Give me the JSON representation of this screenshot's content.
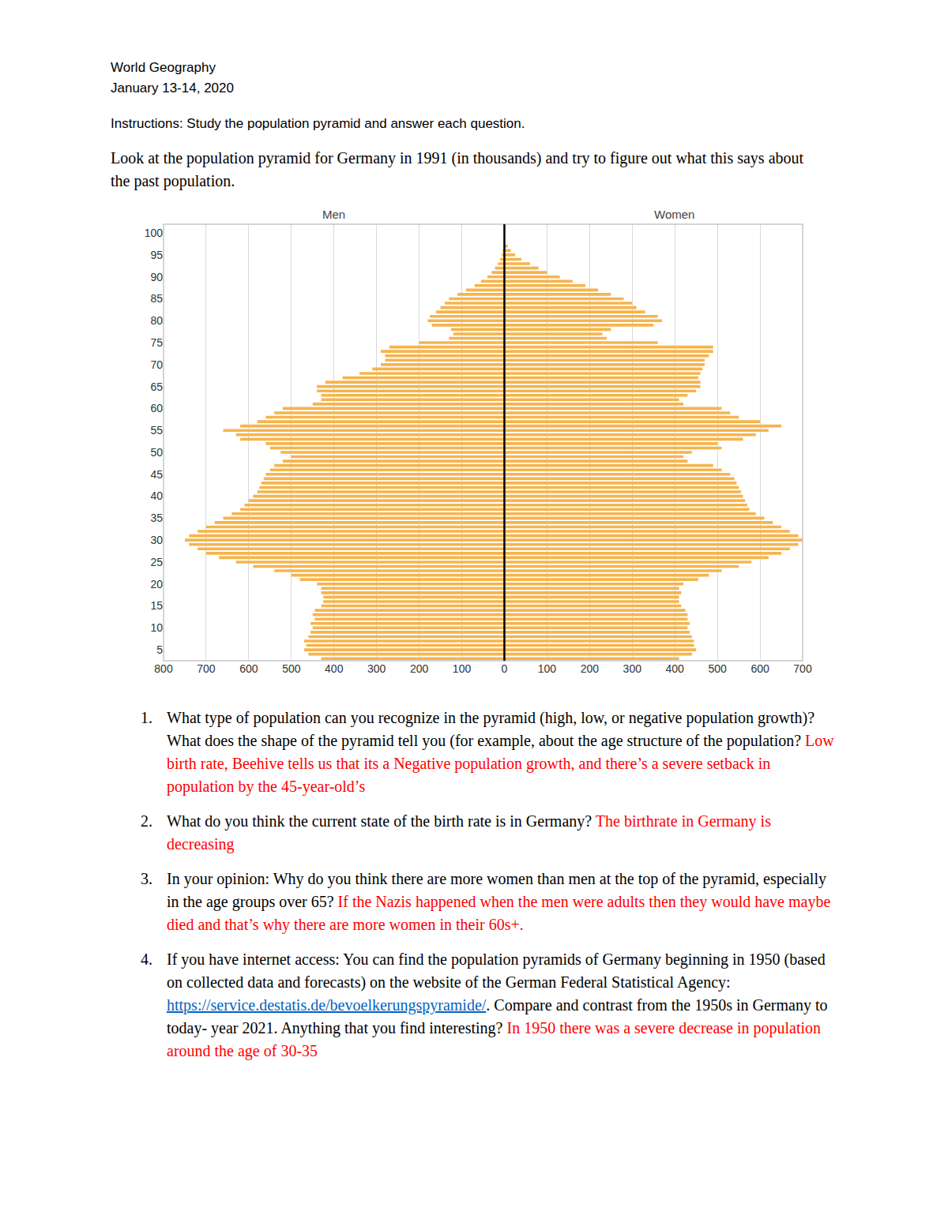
{
  "header": {
    "course": "World Geography",
    "date": "January 13-14, 2020",
    "instructions": "Instructions: Study the population pyramid and answer each question."
  },
  "intro": "Look at the population pyramid for Germany in 1991 (in thousands) and try to figure out what this says about the past population.",
  "chart_data": {
    "type": "bar",
    "orientation": "horizontal",
    "grid": true,
    "categories": [
      3,
      4,
      5,
      6,
      7,
      8,
      9,
      10,
      11,
      12,
      13,
      14,
      15,
      16,
      17,
      18,
      19,
      20,
      21,
      22,
      23,
      24,
      25,
      26,
      27,
      28,
      29,
      30,
      31,
      32,
      33,
      34,
      35,
      36,
      37,
      38,
      39,
      40,
      41,
      42,
      43,
      44,
      45,
      46,
      47,
      48,
      49,
      50,
      51,
      52,
      53,
      54,
      55,
      56,
      57,
      58,
      59,
      60,
      61,
      62,
      63,
      64,
      65,
      66,
      67,
      68,
      69,
      70,
      71,
      72,
      73,
      74,
      75,
      76,
      77,
      78,
      79,
      80,
      81,
      82,
      83,
      84,
      85,
      86,
      87,
      88,
      89,
      90,
      91,
      92,
      93,
      94,
      95,
      96,
      97
    ],
    "ylim": [
      2.5,
      102
    ],
    "yticks": [
      5,
      10,
      15,
      20,
      25,
      30,
      35,
      40,
      45,
      50,
      55,
      60,
      65,
      70,
      75,
      80,
      85,
      90,
      95,
      100
    ],
    "xlim": [
      800,
      0
    ],
    "xticks": [
      800,
      700,
      600,
      500,
      400,
      300,
      200,
      100,
      0
    ],
    "x2lim": [
      0,
      700
    ],
    "x2ticks": [
      100,
      200,
      300,
      400,
      500,
      600,
      700
    ],
    "series": [
      {
        "name": "Men",
        "axis": "x",
        "color": "#f6b44c",
        "values": [
          430,
          460,
          470,
          465,
          470,
          460,
          455,
          450,
          455,
          445,
          450,
          445,
          430,
          425,
          425,
          430,
          430,
          440,
          480,
          500,
          540,
          590,
          630,
          670,
          700,
          720,
          740,
          750,
          740,
          720,
          700,
          680,
          660,
          640,
          620,
          610,
          600,
          590,
          580,
          575,
          570,
          565,
          560,
          550,
          540,
          520,
          500,
          525,
          550,
          560,
          620,
          630,
          660,
          620,
          580,
          560,
          540,
          520,
          450,
          430,
          430,
          440,
          440,
          420,
          380,
          340,
          310,
          290,
          280,
          280,
          290,
          270,
          200,
          130,
          120,
          125,
          170,
          180,
          175,
          160,
          150,
          140,
          130,
          110,
          90,
          70,
          55,
          40,
          30,
          22,
          15,
          10,
          6,
          4,
          2
        ]
      },
      {
        "name": "Women",
        "axis": "x2",
        "color": "#f6b44c",
        "values": [
          410,
          440,
          450,
          445,
          445,
          440,
          435,
          430,
          435,
          430,
          430,
          425,
          415,
          410,
          410,
          415,
          410,
          420,
          455,
          480,
          510,
          550,
          580,
          620,
          650,
          670,
          690,
          700,
          690,
          670,
          650,
          630,
          610,
          590,
          575,
          570,
          565,
          560,
          555,
          550,
          545,
          540,
          530,
          510,
          490,
          430,
          420,
          440,
          510,
          500,
          560,
          590,
          620,
          650,
          600,
          550,
          530,
          510,
          420,
          410,
          430,
          450,
          460,
          460,
          455,
          460,
          465,
          470,
          470,
          480,
          490,
          490,
          360,
          240,
          230,
          250,
          350,
          370,
          360,
          330,
          310,
          300,
          280,
          250,
          220,
          190,
          160,
          130,
          100,
          80,
          60,
          40,
          25,
          15,
          8
        ]
      }
    ]
  },
  "questions": [
    {
      "number": "1.",
      "question": [
        {
          "text": "What type of population can you recognize in the pyramid (high, low, or negative population growth)? What does the shape of the pyramid tell you (for example, about the age structure of the population?"
        }
      ],
      "answer": "Low birth rate, Beehive tells us that its a Negative population growth, and there’s a severe setback in population by the 45-year-old’s"
    },
    {
      "number": "2.",
      "question": [
        {
          "text": "What do you think the current state of the birth rate is in Germany?"
        }
      ],
      "answer": "The birthrate in Germany is decreasing"
    },
    {
      "number": "3.",
      "question": [
        {
          "text": "In your opinion: Why do you think there are more women than men at the top of the pyramid, especially in the age groups over 65?"
        }
      ],
      "answer": "If the Nazis happened when the men were adults then they would have maybe died and that’s why there are more women in their 60s+."
    },
    {
      "number": "4.",
      "question": [
        {
          "text": "If you have internet access: You can find the population pyramids of Germany beginning in 1950 (based on collected data and forecasts) on the website of the German Federal Statistical Agency: "
        },
        {
          "text": "https://service.destatis.de/bevoelkerungspyramide/",
          "link": true
        },
        {
          "text": ". Compare and contrast from the 1950s in Germany to today- year 2021. Anything that you find interesting?"
        }
      ],
      "answer": "In 1950 there was a severe decrease in population around the age of 30-35"
    }
  ]
}
